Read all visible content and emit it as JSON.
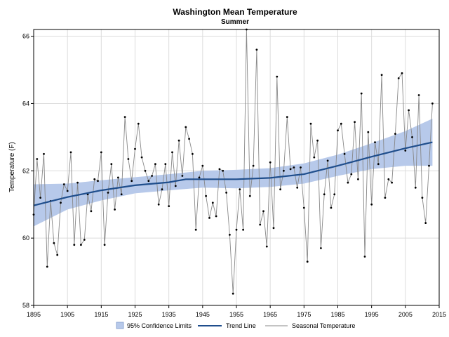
{
  "chart_data": {
    "type": "line",
    "title": "Washington Mean Temperature",
    "subtitle": "Summer",
    "xlabel": "",
    "ylabel": "Temperature (F)",
    "xlim": [
      1895,
      2015
    ],
    "ylim": [
      58,
      66.2
    ],
    "x_ticks": [
      "1895",
      "1905",
      "1915",
      "1925",
      "1935",
      "1945",
      "1955",
      "1965",
      "1975",
      "1985",
      "1995",
      "2005",
      "2015"
    ],
    "y_ticks": [
      "58",
      "60",
      "62",
      "64",
      "66"
    ],
    "grid": true,
    "legend_position": "bottom",
    "legend": [
      "95% Confidence Limits",
      "Trend Line",
      "Seasonal Temperature"
    ],
    "colors": {
      "confidence": "#b7c9ea",
      "trend": "#1f4e8c",
      "seasonal": "#888888",
      "markers": "#000000",
      "grid": "#dcdcdc"
    },
    "series": [
      {
        "name": "Seasonal Temperature",
        "x": [
          1895,
          1896,
          1897,
          1898,
          1899,
          1900,
          1901,
          1902,
          1903,
          1904,
          1905,
          1906,
          1907,
          1908,
          1909,
          1910,
          1911,
          1912,
          1913,
          1914,
          1915,
          1916,
          1917,
          1918,
          1919,
          1920,
          1921,
          1922,
          1923,
          1924,
          1925,
          1926,
          1927,
          1928,
          1929,
          1930,
          1931,
          1932,
          1933,
          1934,
          1935,
          1936,
          1937,
          1938,
          1939,
          1940,
          1941,
          1942,
          1943,
          1944,
          1945,
          1946,
          1947,
          1948,
          1949,
          1950,
          1951,
          1952,
          1953,
          1954,
          1955,
          1956,
          1957,
          1958,
          1959,
          1960,
          1961,
          1962,
          1963,
          1964,
          1965,
          1966,
          1967,
          1968,
          1969,
          1970,
          1971,
          1972,
          1973,
          1974,
          1975,
          1976,
          1977,
          1978,
          1979,
          1980,
          1981,
          1982,
          1983,
          1984,
          1985,
          1986,
          1987,
          1988,
          1989,
          1990,
          1991,
          1992,
          1993,
          1994,
          1995,
          1996,
          1997,
          1998,
          1999,
          2000,
          2001,
          2002,
          2003,
          2004,
          2005,
          2006,
          2007,
          2008,
          2009,
          2010,
          2011,
          2012,
          2013
        ],
        "y": [
          60.7,
          62.35,
          61.2,
          62.5,
          59.15,
          61.1,
          59.85,
          59.5,
          61.05,
          61.6,
          61.4,
          62.55,
          59.8,
          61.65,
          59.8,
          59.95,
          61.3,
          60.8,
          61.75,
          61.7,
          62.55,
          59.8,
          61.35,
          62.2,
          60.85,
          61.8,
          61.3,
          63.6,
          62.35,
          61.7,
          62.65,
          63.4,
          62.4,
          62.0,
          61.7,
          61.85,
          62.2,
          61.0,
          61.45,
          62.2,
          60.95,
          62.55,
          61.55,
          62.9,
          61.85,
          63.3,
          62.95,
          62.5,
          60.25,
          61.8,
          62.15,
          61.25,
          60.6,
          61.05,
          60.65,
          62.05,
          62.0,
          61.35,
          60.1,
          58.35,
          60.25,
          61.45,
          60.25,
          66.2,
          61.25,
          62.15,
          65.6,
          60.4,
          60.8,
          59.75,
          62.25,
          60.3,
          64.8,
          61.45,
          62.0,
          63.6,
          62.05,
          62.1,
          61.5,
          62.1,
          60.9,
          59.3,
          63.4,
          62.4,
          62.9,
          59.7,
          61.3,
          62.3,
          60.9,
          61.3,
          63.2,
          63.4,
          62.5,
          61.65,
          61.9,
          63.45,
          61.75,
          64.3,
          59.45,
          63.15,
          61.0,
          62.85,
          62.2,
          64.85,
          61.2,
          61.75,
          61.65,
          63.1,
          64.75,
          64.9,
          62.6,
          63.8,
          63.0,
          61.5,
          64.25,
          61.2,
          60.45,
          62.15,
          64.0
        ]
      },
      {
        "name": "Trend Line",
        "x": [
          1895,
          1905,
          1915,
          1925,
          1935,
          1940,
          1945,
          1955,
          1965,
          1975,
          1985,
          1995,
          2005,
          2013
        ],
        "y": [
          60.97,
          61.22,
          61.42,
          61.57,
          61.66,
          61.75,
          61.75,
          61.75,
          61.79,
          61.9,
          62.15,
          62.42,
          62.67,
          62.85
        ]
      },
      {
        "name": "95% Confidence Limits",
        "x": [
          1895,
          1905,
          1915,
          1925,
          1935,
          1945,
          1955,
          1965,
          1975,
          1985,
          1995,
          2005,
          2013
        ],
        "lower": [
          60.35,
          60.85,
          61.12,
          61.33,
          61.42,
          61.5,
          61.48,
          61.52,
          61.62,
          61.85,
          62.05,
          62.15,
          62.15
        ],
        "upper": [
          61.6,
          61.62,
          61.72,
          61.81,
          61.9,
          62.0,
          62.03,
          62.08,
          62.22,
          62.48,
          62.82,
          63.18,
          63.55
        ]
      }
    ]
  }
}
